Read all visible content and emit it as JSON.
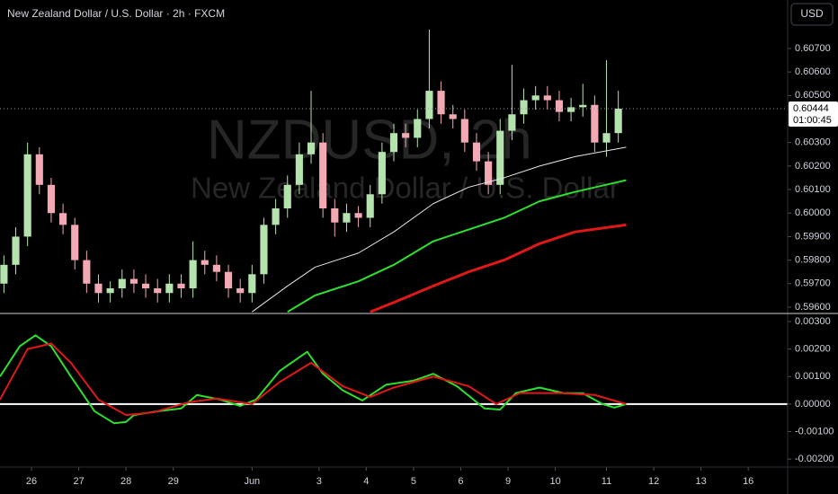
{
  "header": {
    "currency": "USD"
  },
  "watermark": {
    "symbol": "NZDUSD, 2h",
    "description": "New Zealand Dollar / U.S. Dollar"
  },
  "chart_data": [
    {
      "type": "candlestick",
      "title": "New Zealand Dollar / U.S. Dollar · 2h · FXCM",
      "up_color": "#b5e3ad",
      "down_color": "#f2a9b3",
      "xlim": [
        0,
        200
      ],
      "ylim": [
        0.59577,
        0.60906
      ],
      "yticks": [
        {
          "value": 0.607,
          "label": "0.60700"
        },
        {
          "value": 0.606,
          "label": "0.60600"
        },
        {
          "value": 0.605,
          "label": "0.60500"
        },
        {
          "value": 0.603,
          "label": "0.60300"
        },
        {
          "value": 0.602,
          "label": "0.60200"
        },
        {
          "value": 0.601,
          "label": "0.60100"
        },
        {
          "value": 0.6,
          "label": "0.60000"
        },
        {
          "value": 0.599,
          "label": "0.59900"
        },
        {
          "value": 0.598,
          "label": "0.59800"
        },
        {
          "value": 0.597,
          "label": "0.59700"
        },
        {
          "value": 0.596,
          "label": "0.59600"
        }
      ],
      "x": [
        1,
        4,
        7,
        10,
        13,
        16,
        19,
        22,
        25,
        28,
        31,
        34,
        37,
        40,
        43,
        46,
        49,
        52,
        55,
        58,
        61,
        64,
        67,
        70,
        73,
        76,
        79,
        82,
        85,
        88,
        91,
        94,
        97,
        100,
        103,
        106,
        109,
        112,
        115,
        118,
        121,
        124,
        127,
        130,
        133,
        136,
        139,
        142,
        145,
        148,
        151,
        154,
        157
      ],
      "open": [
        0.597,
        0.5978,
        0.599,
        0.6025,
        0.6012,
        0.6,
        0.5995,
        0.598,
        0.597,
        0.5966,
        0.5968,
        0.5972,
        0.597,
        0.5968,
        0.5966,
        0.597,
        0.5968,
        0.598,
        0.5978,
        0.5975,
        0.5968,
        0.5966,
        0.5974,
        0.5995,
        0.6002,
        0.6012,
        0.6025,
        0.603,
        0.6002,
        0.5996,
        0.6,
        0.5998,
        0.6008,
        0.6026,
        0.6034,
        0.6032,
        0.604,
        0.6052,
        0.6042,
        0.604,
        0.603,
        0.6022,
        0.6012,
        0.6035,
        0.6042,
        0.6048,
        0.605,
        0.6048,
        0.6043,
        0.6045,
        0.6046,
        0.603,
        0.6034
      ],
      "high": [
        0.5982,
        0.5994,
        0.603,
        0.6028,
        0.6015,
        0.6004,
        0.5998,
        0.5984,
        0.5974,
        0.5971,
        0.5976,
        0.5976,
        0.5974,
        0.5972,
        0.5974,
        0.5974,
        0.5988,
        0.5984,
        0.5982,
        0.5978,
        0.5972,
        0.5978,
        0.5998,
        0.6006,
        0.6016,
        0.603,
        0.6052,
        0.6034,
        0.6006,
        0.6004,
        0.6003,
        0.6012,
        0.603,
        0.6038,
        0.6038,
        0.6044,
        0.6078,
        0.6056,
        0.6046,
        0.6044,
        0.6034,
        0.6026,
        0.604,
        0.6063,
        0.6053,
        0.6054,
        0.6054,
        0.6052,
        0.6049,
        0.6055,
        0.605,
        0.6065,
        0.6052
      ],
      "low": [
        0.5966,
        0.5974,
        0.5986,
        0.6008,
        0.5996,
        0.5991,
        0.5976,
        0.5966,
        0.5962,
        0.5962,
        0.5964,
        0.5966,
        0.5964,
        0.5962,
        0.5962,
        0.5964,
        0.5964,
        0.5974,
        0.5971,
        0.5964,
        0.5962,
        0.5962,
        0.597,
        0.5991,
        0.5998,
        0.6008,
        0.6021,
        0.5998,
        0.599,
        0.5992,
        0.5994,
        0.5994,
        0.6004,
        0.6022,
        0.6028,
        0.6028,
        0.6036,
        0.6038,
        0.6036,
        0.6026,
        0.6018,
        0.6008,
        0.6008,
        0.6031,
        0.6038,
        0.6044,
        0.6044,
        0.6039,
        0.6039,
        0.6041,
        0.6026,
        0.6024,
        0.603
      ],
      "close": [
        0.5978,
        0.599,
        0.6025,
        0.6012,
        0.6,
        0.5995,
        0.598,
        0.597,
        0.5966,
        0.5968,
        0.5972,
        0.597,
        0.5968,
        0.5966,
        0.597,
        0.5968,
        0.598,
        0.5978,
        0.5975,
        0.5968,
        0.5966,
        0.5974,
        0.5995,
        0.6002,
        0.6012,
        0.6025,
        0.603,
        0.6002,
        0.5996,
        0.6,
        0.5998,
        0.6008,
        0.6026,
        0.6034,
        0.6032,
        0.604,
        0.6052,
        0.6042,
        0.604,
        0.603,
        0.6022,
        0.6012,
        0.6035,
        0.6042,
        0.6048,
        0.605,
        0.6048,
        0.6043,
        0.6045,
        0.6046,
        0.603,
        0.6034,
        0.60444
      ],
      "series": [
        {
          "color": "#e8e8e8",
          "width": 1,
          "x": [
            64,
            73,
            80,
            91,
            100,
            110,
            119,
            128,
            137,
            146,
            159
          ],
          "values": [
            0.5958,
            0.5969,
            0.5977,
            0.5983,
            0.5992,
            0.6004,
            0.6011,
            0.6015,
            0.602,
            0.6024,
            0.6028
          ]
        },
        {
          "color": "#2ee02e",
          "width": 2,
          "x": [
            73,
            80,
            91,
            100,
            110,
            119,
            128,
            137,
            146,
            159
          ],
          "values": [
            0.5958,
            0.5965,
            0.5971,
            0.5978,
            0.5988,
            0.5993,
            0.5998,
            0.6005,
            0.6009,
            0.6014
          ]
        },
        {
          "color": "#e01818",
          "width": 3,
          "x": [
            94,
            100,
            110,
            119,
            128,
            137,
            146,
            159
          ],
          "values": [
            0.5958,
            0.5962,
            0.5969,
            0.5975,
            0.598,
            0.5987,
            0.5992,
            0.5995
          ]
        }
      ],
      "last_price": 0.60444,
      "last_price_label": "0.60444",
      "countdown": "01:00:45"
    },
    {
      "type": "line",
      "xlim": [
        0,
        200
      ],
      "ylim": [
        -0.00229,
        0.00326
      ],
      "yticks": [
        {
          "value": 0.003,
          "label": "0.00300"
        },
        {
          "value": 0.002,
          "label": "0.00200"
        },
        {
          "value": 0.001,
          "label": "0.00100"
        },
        {
          "value": 0,
          "label": "0.00000"
        },
        {
          "value": -0.001,
          "label": "-0.00100"
        },
        {
          "value": -0.002,
          "label": "-0.00200"
        }
      ],
      "xticks": [
        {
          "value": 8,
          "label": "26"
        },
        {
          "value": 20,
          "label": "27"
        },
        {
          "value": 32,
          "label": "28"
        },
        {
          "value": 44,
          "label": "29"
        },
        {
          "value": 64,
          "label": "Jun"
        },
        {
          "value": 81,
          "label": "3"
        },
        {
          "value": 93,
          "label": "4"
        },
        {
          "value": 105,
          "label": "5"
        },
        {
          "value": 117,
          "label": "6"
        },
        {
          "value": 129,
          "label": "9"
        },
        {
          "value": 141,
          "label": "10"
        },
        {
          "value": 154,
          "label": "11"
        },
        {
          "value": 166,
          "label": "12"
        },
        {
          "value": 178,
          "label": "13"
        },
        {
          "value": 190,
          "label": "16"
        }
      ],
      "series": [
        {
          "color": "#2ee02e",
          "x": [
            0,
            5,
            9,
            13,
            18,
            24,
            29,
            32,
            34,
            40,
            46,
            50,
            56,
            61,
            65,
            71,
            78,
            82,
            87,
            92,
            98,
            105,
            110,
            116,
            123,
            127,
            131,
            137,
            143,
            148,
            153,
            156,
            159
          ],
          "values": [
            0.001,
            0.0021,
            0.0025,
            0.0021,
            0.001,
            -0.00026,
            -0.0007,
            -0.00065,
            -0.0004,
            -0.00026,
            -0.00016,
            0.00033,
            0.00016,
            -7e-05,
            0.00016,
            0.0012,
            0.0019,
            0.0011,
            0.0005,
            0.00013,
            0.0007,
            0.00085,
            0.0011,
            0.00065,
            -0.00016,
            -0.0002,
            0.0004,
            0.0006,
            0.0004,
            0.00039,
            0,
            -0.00013,
            0
          ]
        },
        {
          "color": "#e01818",
          "x": [
            0,
            7,
            13,
            18,
            25,
            32,
            39,
            48,
            55,
            64,
            71,
            79,
            87,
            94,
            100,
            110,
            119,
            126,
            132,
            142,
            151,
            159
          ],
          "values": [
            0.00016,
            0.002,
            0.0022,
            0.0015,
            0.00016,
            -0.0004,
            -0.0003,
            7e-05,
            0.0002,
            0,
            0.0008,
            0.0015,
            0.00065,
            0.00026,
            0.0006,
            0.001,
            0.00065,
            0,
            0.0004,
            0.0004,
            0.00033,
            0
          ]
        }
      ]
    }
  ]
}
